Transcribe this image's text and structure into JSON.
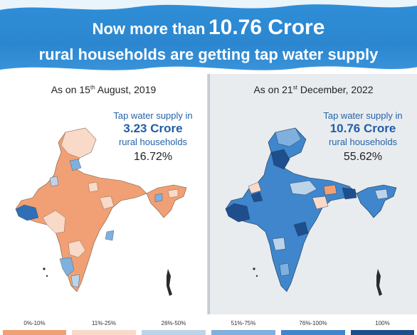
{
  "header": {
    "line1_prefix": "Now more than",
    "line1_highlight": "10.76 Crore",
    "line2": "rural households are getting tap water supply"
  },
  "left_panel": {
    "date_prefix": "As on 15",
    "date_sup": "th",
    "date_suffix": " August, 2019",
    "stat_label": "Tap water supply in",
    "stat_value": "3.23 Crore",
    "stat_sub": "rural households",
    "stat_percent": "16.72%"
  },
  "right_panel": {
    "date_prefix": "As on 21",
    "date_sup": "st",
    "date_suffix": " December, 2022",
    "stat_label": "Tap water supply in",
    "stat_value": "10.76 Crore",
    "stat_sub": "rural households",
    "stat_percent": "55.62%"
  },
  "legend": [
    {
      "label": "0%-10%",
      "color": "#f0a074"
    },
    {
      "label": "11%-25%",
      "color": "#f9d9c8"
    },
    {
      "label": "26%-50%",
      "color": "#bcd4ea"
    },
    {
      "label": "51%-75%",
      "color": "#7fb0de"
    },
    {
      "label": "76%-100%",
      "color": "#3f86cc"
    },
    {
      "label": "100%",
      "color": "#1f4e8c"
    }
  ],
  "map_colors": {
    "left_base": "#f0a074",
    "left_light": "#f9d9c8",
    "left_blue": "#7fb0de",
    "left_dark": "#2f6fb5",
    "right_base": "#3f86cc",
    "right_light": "#bcd4ea",
    "right_dark": "#1f4e8c",
    "right_pale": "#f9d9c8",
    "right_orange": "#f0a074"
  }
}
